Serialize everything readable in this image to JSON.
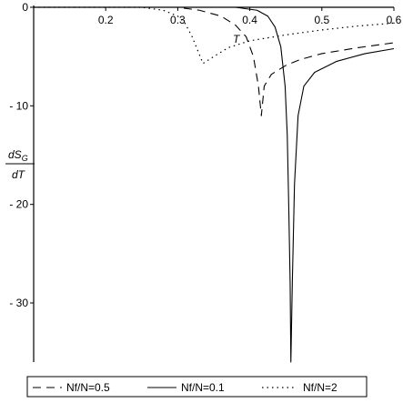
{
  "chart_data": {
    "type": "line",
    "title": "",
    "xlabel": "T",
    "ylabel_num": "dS",
    "ylabel_sub": "G",
    "ylabel_den": "dT",
    "xlim": [
      0.1,
      0.6
    ],
    "ylim": [
      -36,
      0
    ],
    "x_ticks": [
      0.2,
      0.3,
      0.4,
      0.5,
      0.6
    ],
    "x_tick_labels": [
      "0.2",
      "0.3",
      "0.4",
      "0.5",
      "0.6"
    ],
    "y_ticks": [
      0,
      -10,
      -20,
      -30
    ],
    "y_tick_labels": [
      "0",
      "- 10",
      "- 20",
      "- 30"
    ],
    "grid": false,
    "legend_position": "bottom",
    "series": [
      {
        "name": "Nf/N=0.5",
        "style": "dashed",
        "points": [
          [
            0.1,
            0
          ],
          [
            0.2,
            0
          ],
          [
            0.25,
            0
          ],
          [
            0.3,
            0
          ],
          [
            0.33,
            -0.3
          ],
          [
            0.36,
            -0.9
          ],
          [
            0.38,
            -1.8
          ],
          [
            0.395,
            -3.0
          ],
          [
            0.405,
            -5.0
          ],
          [
            0.412,
            -8.0
          ],
          [
            0.416,
            -11.0
          ],
          [
            0.42,
            -8.0
          ],
          [
            0.43,
            -6.8
          ],
          [
            0.45,
            -5.9
          ],
          [
            0.47,
            -5.3
          ],
          [
            0.5,
            -4.7
          ],
          [
            0.55,
            -4.1
          ],
          [
            0.6,
            -3.6
          ]
        ]
      },
      {
        "name": "Nf/N=0.1",
        "style": "solid",
        "points": [
          [
            0.1,
            0
          ],
          [
            0.2,
            0
          ],
          [
            0.3,
            0
          ],
          [
            0.38,
            0
          ],
          [
            0.41,
            -0.3
          ],
          [
            0.425,
            -0.9
          ],
          [
            0.435,
            -2.0
          ],
          [
            0.443,
            -4.0
          ],
          [
            0.449,
            -8.0
          ],
          [
            0.452,
            -13.0
          ],
          [
            0.454,
            -20.0
          ],
          [
            0.456,
            -28.0
          ],
          [
            0.457,
            -36.0
          ],
          [
            0.459,
            -28.0
          ],
          [
            0.462,
            -18.0
          ],
          [
            0.467,
            -11.0
          ],
          [
            0.475,
            -8.0
          ],
          [
            0.49,
            -6.6
          ],
          [
            0.52,
            -5.5
          ],
          [
            0.56,
            -4.7
          ],
          [
            0.6,
            -4.2
          ]
        ]
      },
      {
        "name": "Nf/N=2",
        "style": "dotted",
        "points": [
          [
            0.1,
            0
          ],
          [
            0.2,
            0
          ],
          [
            0.25,
            0
          ],
          [
            0.28,
            -0.3
          ],
          [
            0.3,
            -0.9
          ],
          [
            0.31,
            -1.6
          ],
          [
            0.32,
            -3.0
          ],
          [
            0.335,
            -5.7
          ],
          [
            0.35,
            -5.0
          ],
          [
            0.37,
            -4.1
          ],
          [
            0.4,
            -3.4
          ],
          [
            0.45,
            -2.8
          ],
          [
            0.5,
            -2.3
          ],
          [
            0.55,
            -1.9
          ],
          [
            0.6,
            -1.6
          ]
        ]
      }
    ]
  }
}
